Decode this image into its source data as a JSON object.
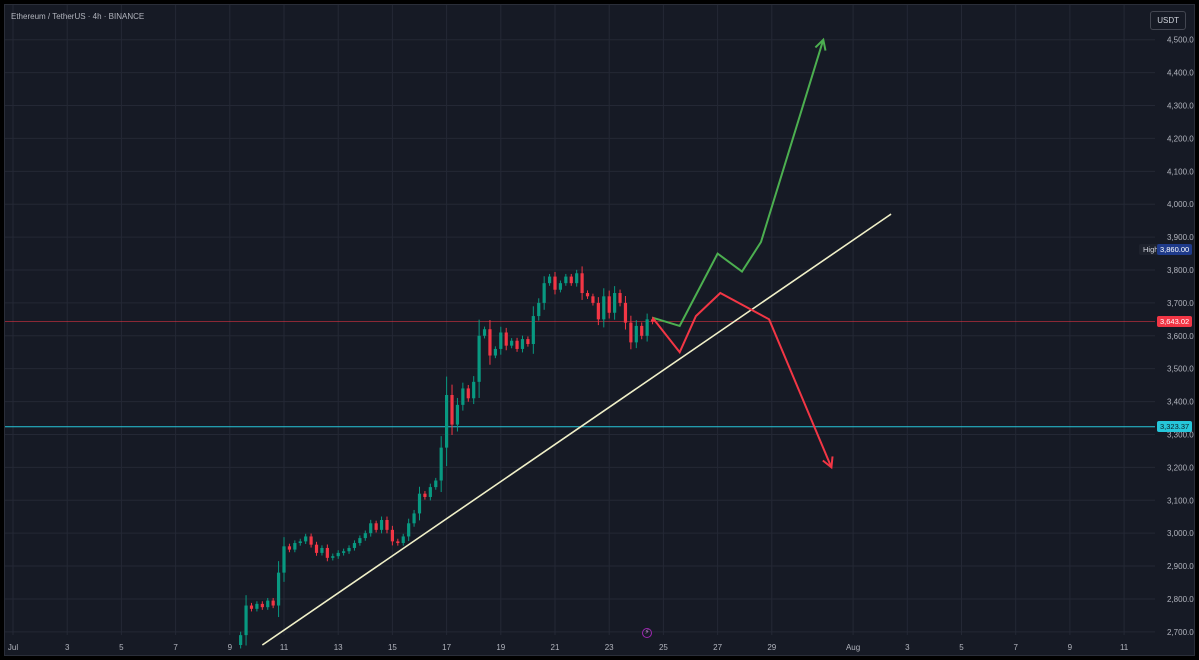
{
  "header": {
    "symbol_title": "Ethereum / TetherUS · 4h · BINANCE",
    "currency": "USDT"
  },
  "colors": {
    "background": "#161a25",
    "grid": "#242835",
    "up_candle": "#089981",
    "down_candle": "#f23645",
    "trendline": "#f0f0c8",
    "bull_projection": "#4caf50",
    "bear_projection": "#f23645",
    "current_price_line": "#f23645",
    "support_line": "#26c6da"
  },
  "price_tags": {
    "high_label": "High",
    "high_value": "3,860.00",
    "current_price": "3,643.02",
    "support": "3,323.37"
  },
  "event_marker_icon": "lightning-icon",
  "chart_data": {
    "type": "candlestick",
    "title": "",
    "xlabel": "",
    "ylabel": "",
    "x_ticks": [
      "Jul",
      "3",
      "5",
      "7",
      "9",
      "11",
      "13",
      "15",
      "17",
      "19",
      "21",
      "23",
      "25",
      "27",
      "29",
      "Aug",
      "3",
      "5",
      "7",
      "9",
      "11"
    ],
    "y_ticks": [
      "2,700.00",
      "2,800.00",
      "2,900.00",
      "3,000.00",
      "3,100.00",
      "3,200.00",
      "3,300.00",
      "3,400.00",
      "3,500.00",
      "3,600.00",
      "3,700.00",
      "3,800.00",
      "3,900.00",
      "4,000.00",
      "4,100.00",
      "4,200.00",
      "4,300.00",
      "4,400.00",
      "4,500.00"
    ],
    "ylim": [
      2660,
      4560
    ],
    "grid": true,
    "candle_series": [
      {
        "day": 9.4,
        "close": 2690
      },
      {
        "day": 9.6,
        "close": 2780
      },
      {
        "day": 9.8,
        "close": 2770
      },
      {
        "day": 10.0,
        "close": 2785
      },
      {
        "day": 10.2,
        "close": 2775
      },
      {
        "day": 10.4,
        "close": 2795
      },
      {
        "day": 10.6,
        "close": 2780
      },
      {
        "day": 10.8,
        "close": 2880
      },
      {
        "day": 11.0,
        "close": 2960
      },
      {
        "day": 11.2,
        "close": 2950
      },
      {
        "day": 11.4,
        "close": 2970
      },
      {
        "day": 11.6,
        "close": 2975
      },
      {
        "day": 11.8,
        "close": 2990
      },
      {
        "day": 12.0,
        "close": 2965
      },
      {
        "day": 12.2,
        "close": 2940
      },
      {
        "day": 12.4,
        "close": 2955
      },
      {
        "day": 12.6,
        "close": 2925
      },
      {
        "day": 12.8,
        "close": 2930
      },
      {
        "day": 13.0,
        "close": 2940
      },
      {
        "day": 13.2,
        "close": 2945
      },
      {
        "day": 13.4,
        "close": 2955
      },
      {
        "day": 13.6,
        "close": 2970
      },
      {
        "day": 13.8,
        "close": 2985
      },
      {
        "day": 14.0,
        "close": 3000
      },
      {
        "day": 14.2,
        "close": 3030
      },
      {
        "day": 14.4,
        "close": 3010
      },
      {
        "day": 14.6,
        "close": 3040
      },
      {
        "day": 14.8,
        "close": 3010
      },
      {
        "day": 15.0,
        "close": 2975
      },
      {
        "day": 15.2,
        "close": 2970
      },
      {
        "day": 15.4,
        "close": 2990
      },
      {
        "day": 15.6,
        "close": 3030
      },
      {
        "day": 15.8,
        "close": 3060
      },
      {
        "day": 16.0,
        "close": 3120
      },
      {
        "day": 16.2,
        "close": 3110
      },
      {
        "day": 16.4,
        "close": 3140
      },
      {
        "day": 16.6,
        "close": 3160
      },
      {
        "day": 16.8,
        "close": 3260
      },
      {
        "day": 17.0,
        "close": 3420
      },
      {
        "day": 17.2,
        "close": 3330
      },
      {
        "day": 17.4,
        "close": 3390
      },
      {
        "day": 17.6,
        "close": 3440
      },
      {
        "day": 17.8,
        "close": 3410
      },
      {
        "day": 18.0,
        "close": 3460
      },
      {
        "day": 18.2,
        "close": 3600
      },
      {
        "day": 18.4,
        "close": 3620
      },
      {
        "day": 18.6,
        "close": 3540
      },
      {
        "day": 18.8,
        "close": 3560
      },
      {
        "day": 19.0,
        "close": 3610
      },
      {
        "day": 19.2,
        "close": 3570
      },
      {
        "day": 19.4,
        "close": 3585
      },
      {
        "day": 19.6,
        "close": 3560
      },
      {
        "day": 19.8,
        "close": 3590
      },
      {
        "day": 20.0,
        "close": 3575
      },
      {
        "day": 20.2,
        "close": 3660
      },
      {
        "day": 20.4,
        "close": 3700
      },
      {
        "day": 20.6,
        "close": 3760
      },
      {
        "day": 20.8,
        "close": 3780
      },
      {
        "day": 21.0,
        "close": 3740
      },
      {
        "day": 21.2,
        "close": 3760
      },
      {
        "day": 21.4,
        "close": 3780
      },
      {
        "day": 21.6,
        "close": 3760
      },
      {
        "day": 21.8,
        "close": 3790
      },
      {
        "day": 22.0,
        "close": 3730
      },
      {
        "day": 22.2,
        "close": 3720
      },
      {
        "day": 22.4,
        "close": 3700
      },
      {
        "day": 22.6,
        "close": 3650
      },
      {
        "day": 22.8,
        "close": 3720
      },
      {
        "day": 23.0,
        "close": 3670
      },
      {
        "day": 23.2,
        "close": 3730
      },
      {
        "day": 23.4,
        "close": 3700
      },
      {
        "day": 23.6,
        "close": 3640
      },
      {
        "day": 23.8,
        "close": 3580
      },
      {
        "day": 24.0,
        "close": 3630
      },
      {
        "day": 24.2,
        "close": 3600
      },
      {
        "day": 24.4,
        "close": 3650
      },
      {
        "day": 24.6,
        "close": 3643
      }
    ],
    "annotations": {
      "trendline": [
        {
          "day": 10.2,
          "price": 2660
        },
        {
          "day": 33.4,
          "price": 3970
        }
      ],
      "bull_path": [
        {
          "day": 24.6,
          "price": 3655
        },
        {
          "day": 25.6,
          "price": 3630
        },
        {
          "day": 27.0,
          "price": 3850
        },
        {
          "day": 27.9,
          "price": 3795
        },
        {
          "day": 28.6,
          "price": 3885
        },
        {
          "day": 30.9,
          "price": 4500
        }
      ],
      "bear_path": [
        {
          "day": 24.6,
          "price": 3655
        },
        {
          "day": 25.6,
          "price": 3550
        },
        {
          "day": 26.2,
          "price": 3660
        },
        {
          "day": 27.1,
          "price": 3730
        },
        {
          "day": 28.9,
          "price": 3650
        },
        {
          "day": 31.2,
          "price": 3200
        }
      ],
      "current_price": 3643.02,
      "support": 3323.37
    }
  }
}
